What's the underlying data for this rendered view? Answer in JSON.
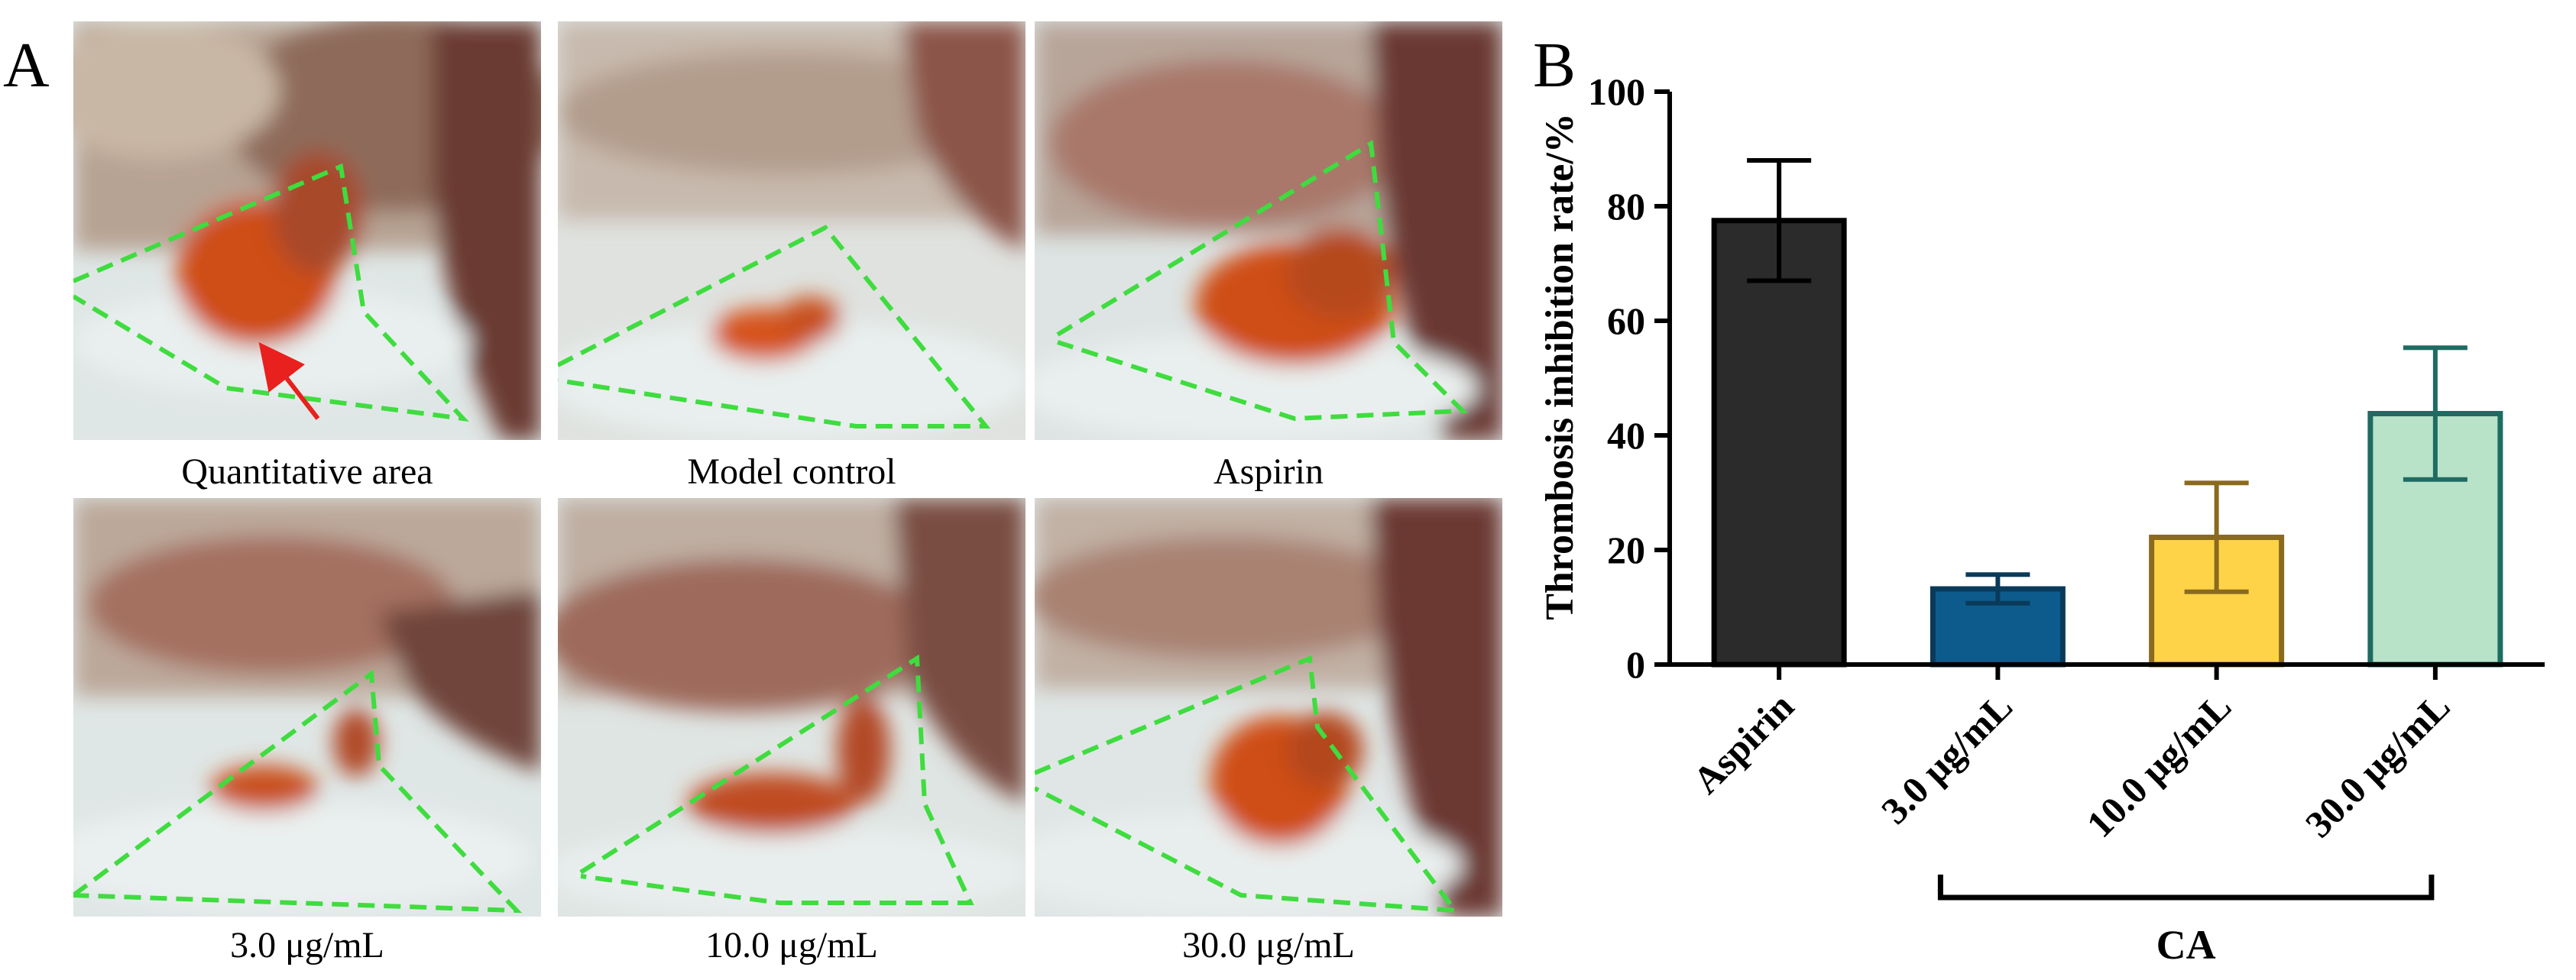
{
  "panel_a": {
    "label": "A",
    "images": [
      {
        "caption": "Quantitative area"
      },
      {
        "caption": "Model control"
      },
      {
        "caption": "Aspirin"
      },
      {
        "caption": "3.0 μg/mL"
      },
      {
        "caption": "10.0 μg/mL"
      },
      {
        "caption": "30.0 μg/mL"
      }
    ],
    "colors": {
      "outline": "#3fdc3f",
      "arrow": "#e8201e",
      "thrombus": "#d85a1a",
      "tissue": "#b89c86",
      "background": "#dfe7e6"
    }
  },
  "panel_b": {
    "label": "B"
  },
  "chart_data": {
    "type": "bar",
    "categories": [
      "Aspirin",
      "3.0 μg/mL",
      "10.0 μg/mL",
      "30.0 μg/mL"
    ],
    "values": [
      77.5,
      13.2,
      22.2,
      43.8
    ],
    "errors": [
      10.5,
      2.5,
      9.5,
      11.5
    ],
    "colors": [
      "#2b2b2b",
      "#0d5b8c",
      "#ffd347",
      "#b8e3c8"
    ],
    "edge_colors": [
      "#000000",
      "#0a3a5a",
      "#8a6a1e",
      "#1f6b62"
    ],
    "ylabel": "Thrombosis inhibition rate/%",
    "ylim": [
      0,
      100
    ],
    "yticks": [
      0,
      20,
      40,
      60,
      80,
      100
    ],
    "group_label": "CA",
    "group_members": [
      "3.0 μg/mL",
      "10.0 μg/mL",
      "30.0 μg/mL"
    ],
    "grid": false
  }
}
